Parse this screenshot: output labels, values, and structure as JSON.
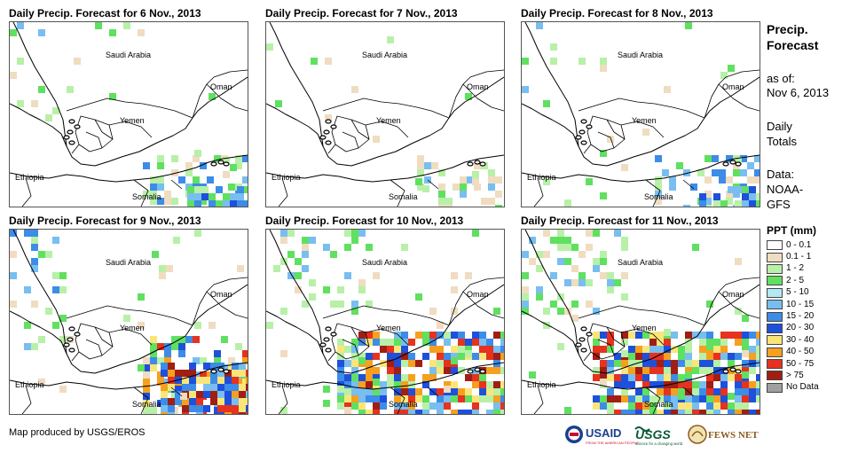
{
  "panels": [
    {
      "title": "Daily Precip. Forecast for 6 Nov., 2013",
      "level": 1
    },
    {
      "title": "Daily Precip. Forecast for 7 Nov., 2013",
      "level": 0
    },
    {
      "title": "Daily Precip. Forecast for 8 Nov., 2013",
      "level": 1
    },
    {
      "title": "Daily Precip. Forecast for 9 Nov., 2013",
      "level": 2
    },
    {
      "title": "Daily Precip. Forecast for 10 Nov., 2013",
      "level": 3
    },
    {
      "title": "Daily Precip. Forecast for 11 Nov., 2013",
      "level": 3
    }
  ],
  "map_labels": {
    "saudi_arabia": "Saudi Arabia",
    "oman": "Oman",
    "yemen": "Yemen",
    "ethiopia": "Ethiopia",
    "somalia": "Somalia"
  },
  "side": {
    "title": "Precip. Forecast",
    "as_of_label": "as of:",
    "as_of_date": "Nov 6, 2013",
    "totals": "Daily Totals",
    "data_label": "Data:",
    "data_source": "NOAA-GFS"
  },
  "legend": {
    "title": "PPT (mm)",
    "items": [
      {
        "label": "0 - 0.1",
        "color": "#ffffff"
      },
      {
        "label": "0.1 - 1",
        "color": "#f0dcc0"
      },
      {
        "label": "1 - 2",
        "color": "#b8f0a8"
      },
      {
        "label": "2 - 5",
        "color": "#60e060"
      },
      {
        "label": "5 - 10",
        "color": "#b4e8f4"
      },
      {
        "label": "10 - 15",
        "color": "#78bef0"
      },
      {
        "label": "15 - 20",
        "color": "#3c8ce8"
      },
      {
        "label": "20 - 30",
        "color": "#1e50dc"
      },
      {
        "label": "30 - 40",
        "color": "#fae678"
      },
      {
        "label": "40 - 50",
        "color": "#f5a01e"
      },
      {
        "label": "50 - 75",
        "color": "#e6321e"
      },
      {
        "label": "> 75",
        "color": "#a01e14"
      },
      {
        "label": "No Data",
        "color": "#a0a0a0"
      }
    ]
  },
  "credit": "Map produced by USGS/EROS",
  "logos": {
    "usaid": "USAID",
    "usaid_sub": "FROM THE AMERICAN PEOPLE",
    "usgs": "USGS",
    "usgs_sub": "science for a changing world",
    "fewsnet": "FEWS NET"
  }
}
